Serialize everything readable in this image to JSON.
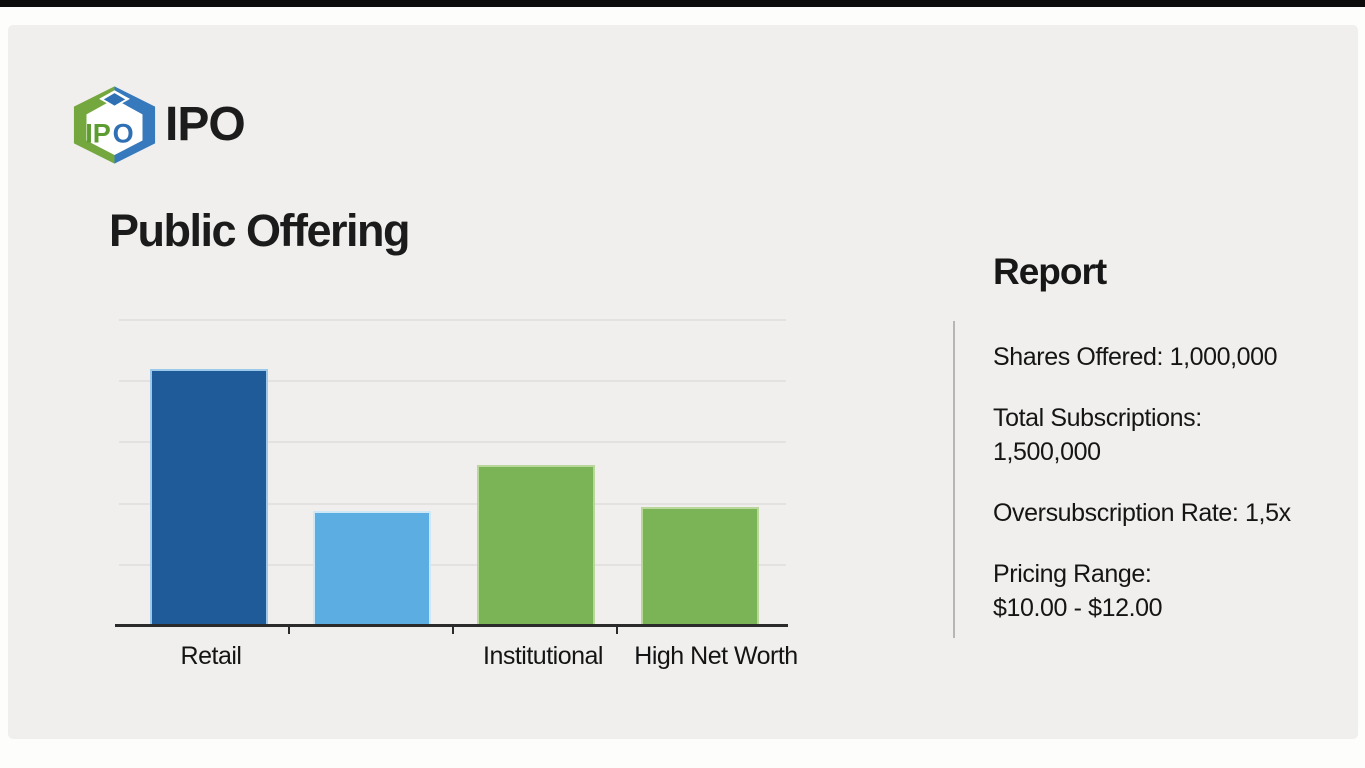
{
  "page": {
    "background": "#fdfdfc",
    "top_strip_color": "#0c0c0c",
    "card_color": "#f0efed"
  },
  "brand": {
    "wordmark": "IPO",
    "logo_letters_left": "IP",
    "logo_letters_right": "O",
    "logo_green": "#74a83e",
    "logo_green_dark": "#5d9c31",
    "logo_blue": "#3779bd",
    "logo_blue_dark": "#2f6fb4"
  },
  "title": "Public Offering",
  "report": {
    "heading": "Report",
    "items": [
      "Shares Offered: 1,000,000",
      "Total Subscriptions:\n1,500,000",
      "Oversubscription Rate: 1,5x",
      "Pricing Range:\n$10.00 - $12.00"
    ]
  },
  "chart_data": {
    "type": "bar",
    "title": "",
    "xlabel": "",
    "ylabel": "",
    "categories": [
      "Retail",
      "",
      "Institutional",
      "High Net Worth"
    ],
    "values": [
      4.2,
      1.88,
      2.63,
      1.95
    ],
    "ylim": [
      0,
      5
    ],
    "gridlines": [
      1,
      2,
      3,
      4,
      5
    ],
    "grid_on": true,
    "legend_position": "none",
    "y_tick_labels_visible": false,
    "bar_colors": [
      "#1f5b99",
      "#5cade2",
      "#7ab457",
      "#7ab457"
    ],
    "bar_edge_colors": [
      "#9cc9ea",
      "#cfe8f7",
      "#b9d79b",
      "#b9d79b"
    ],
    "gridline_color": "#e3e2e0",
    "axis_color": "#2b2b2b"
  }
}
